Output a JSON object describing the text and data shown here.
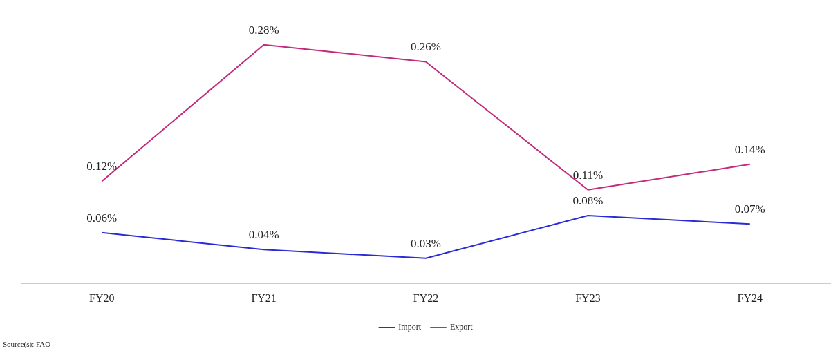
{
  "chart_data": {
    "type": "line",
    "categories": [
      "FY20",
      "FY21",
      "FY22",
      "FY23",
      "FY24"
    ],
    "series": [
      {
        "name": "Import",
        "color": "#2b2bd4",
        "values": [
          0.06,
          0.04,
          0.03,
          0.08,
          0.07
        ],
        "value_labels": [
          "0.06%",
          "0.04%",
          "0.03%",
          "0.08%",
          "0.07%"
        ]
      },
      {
        "name": "Export",
        "color": "#c42a7c",
        "values": [
          0.12,
          0.28,
          0.26,
          0.11,
          0.14
        ],
        "value_labels": [
          "0.12%",
          "0.28%",
          "0.26%",
          "0.11%",
          "0.14%"
        ]
      }
    ],
    "grid": false,
    "legend": "bottom",
    "marker": "none",
    "line_style": "solid",
    "tick_labels": "x",
    "annotations": [
      "Source(s): FAO"
    ]
  }
}
